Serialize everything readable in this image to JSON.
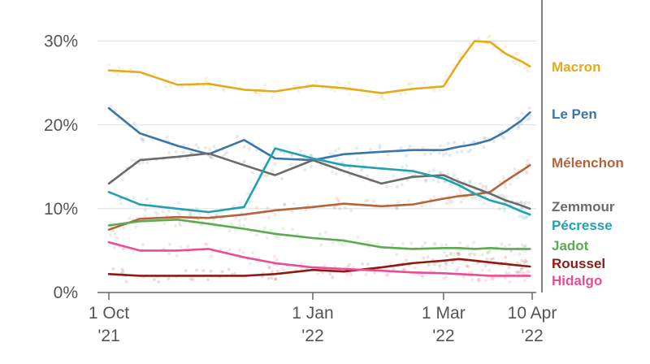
{
  "chart_data": {
    "type": "line",
    "title": "",
    "xlabel": "",
    "ylabel": "",
    "x_dates": [
      "2021-10-01",
      "2021-10-15",
      "2021-11-01",
      "2021-11-15",
      "2021-12-01",
      "2021-12-15",
      "2022-01-01",
      "2022-01-15",
      "2022-02-01",
      "2022-02-15",
      "2022-03-01",
      "2022-03-08",
      "2022-03-15",
      "2022-03-22",
      "2022-03-29",
      "2022-04-05",
      "2022-04-09"
    ],
    "x_ticks": [
      {
        "date": "2021-10-01",
        "line1": "1 Oct",
        "line2": "'21"
      },
      {
        "date": "2022-01-01",
        "line1": "1 Jan",
        "line2": "'22"
      },
      {
        "date": "2022-03-01",
        "line1": "1 Mar",
        "line2": "'22"
      },
      {
        "date": "2022-04-10",
        "line1": "10 Apr",
        "line2": "'22"
      }
    ],
    "y_ticks": [
      {
        "value": 0,
        "label": "0%"
      },
      {
        "value": 10,
        "label": "10%"
      },
      {
        "value": 20,
        "label": "20%"
      },
      {
        "value": 30,
        "label": "30%"
      }
    ],
    "ylim": [
      0,
      32
    ],
    "xlim": [
      "2021-10-01",
      "2022-04-10"
    ],
    "grid": true,
    "legend_placement": "right",
    "series": [
      {
        "name": "Macron",
        "color": "#E5A91B",
        "values": [
          26.5,
          26.3,
          24.8,
          24.9,
          24.2,
          24.0,
          24.7,
          24.4,
          23.8,
          24.3,
          24.6,
          27.5,
          30.0,
          29.9,
          28.5,
          27.6,
          27.0
        ]
      },
      {
        "name": "Le Pen",
        "color": "#3A75A8",
        "values": [
          22.0,
          19.0,
          17.5,
          16.5,
          18.2,
          16.0,
          15.8,
          16.5,
          16.8,
          17.0,
          17.0,
          17.4,
          17.7,
          18.2,
          19.2,
          20.5,
          21.5
        ]
      },
      {
        "name": "Mélenchon",
        "color": "#B5633A",
        "values": [
          7.5,
          8.8,
          9.0,
          8.9,
          9.3,
          9.8,
          10.2,
          10.6,
          10.3,
          10.5,
          11.2,
          11.5,
          11.7,
          12.0,
          13.3,
          14.5,
          15.2
        ]
      },
      {
        "name": "Zemmour",
        "color": "#6B6B6B",
        "values": [
          13.0,
          15.8,
          16.2,
          16.6,
          15.2,
          14.0,
          15.8,
          14.5,
          13.0,
          13.8,
          14.0,
          13.2,
          12.5,
          11.8,
          11.0,
          10.4,
          10.0
        ]
      },
      {
        "name": "Pécresse",
        "color": "#23A0AF",
        "values": [
          12.0,
          10.5,
          10.0,
          9.6,
          10.2,
          17.2,
          16.0,
          15.2,
          14.8,
          14.5,
          13.6,
          12.8,
          11.8,
          11.0,
          10.5,
          9.7,
          9.3
        ]
      },
      {
        "name": "Jadot",
        "color": "#5CAA4F",
        "values": [
          8.0,
          8.5,
          8.7,
          8.2,
          7.6,
          7.0,
          6.5,
          6.2,
          5.4,
          5.2,
          5.3,
          5.3,
          5.2,
          5.3,
          5.2,
          5.2,
          5.2
        ]
      },
      {
        "name": "Roussel",
        "color": "#8C1B12",
        "values": [
          2.2,
          2.0,
          2.0,
          2.0,
          2.0,
          2.2,
          2.7,
          2.5,
          3.0,
          3.5,
          3.8,
          4.0,
          3.8,
          3.6,
          3.4,
          3.2,
          3.1
        ]
      },
      {
        "name": "Hidalgo",
        "color": "#EA4C96",
        "values": [
          6.0,
          5.0,
          5.0,
          5.2,
          4.2,
          3.5,
          3.0,
          2.8,
          2.6,
          2.4,
          2.3,
          2.2,
          2.1,
          2.0,
          2.0,
          2.0,
          2.0
        ]
      }
    ]
  }
}
